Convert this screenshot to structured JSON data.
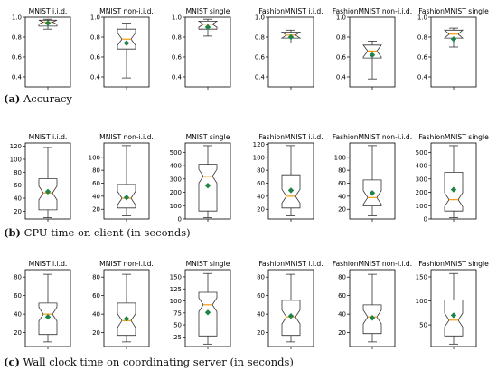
{
  "captions": [
    {
      "letter": "(a)",
      "text": "Accuracy"
    },
    {
      "letter": "(b)",
      "text": "CPU time on client (in seconds)"
    },
    {
      "letter": "(c)",
      "text": "Wall clock time on coordinating server (in seconds)"
    }
  ],
  "colors": {
    "box": "#333333",
    "median": "#f39c12",
    "mean": "#1e8449",
    "frame": "#000000"
  },
  "chart_data": [
    {
      "type": "box",
      "title": "MNIST i.i.d.",
      "ylim": [
        0.3,
        1.0
      ],
      "yticks": [
        "0.4",
        "0.6",
        "0.8",
        "1.0"
      ],
      "ytick_values": [
        0.4,
        0.6,
        0.8,
        1.0
      ],
      "box": {
        "whisker_low": 0.88,
        "q1": 0.91,
        "median": 0.95,
        "q3": 0.97,
        "whisker_high": 0.98,
        "mean": 0.94
      }
    },
    {
      "type": "box",
      "title": "MNIST non-i.i.d.",
      "ylim": [
        0.3,
        1.0
      ],
      "yticks": [
        "0.4",
        "0.6",
        "0.8",
        "1.0"
      ],
      "ytick_values": [
        0.4,
        0.6,
        0.8,
        1.0
      ],
      "box": {
        "whisker_low": 0.39,
        "q1": 0.68,
        "median": 0.78,
        "q3": 0.88,
        "whisker_high": 0.94,
        "mean": 0.74
      }
    },
    {
      "type": "box",
      "title": "MNIST single",
      "ylim": [
        0.3,
        1.0
      ],
      "yticks": [
        "0.4",
        "0.6",
        "0.8",
        "1.0"
      ],
      "ytick_values": [
        0.4,
        0.6,
        0.8,
        1.0
      ],
      "box": {
        "whisker_low": 0.81,
        "q1": 0.88,
        "median": 0.93,
        "q3": 0.96,
        "whisker_high": 0.98,
        "mean": 0.9
      }
    },
    {
      "type": "box",
      "title": "FashionMNIST i.i.d.",
      "ylim": [
        0.3,
        1.0
      ],
      "yticks": [
        "0.4",
        "0.6",
        "0.8",
        "1.0"
      ],
      "ytick_values": [
        0.4,
        0.6,
        0.8,
        1.0
      ],
      "box": {
        "whisker_low": 0.74,
        "q1": 0.79,
        "median": 0.82,
        "q3": 0.85,
        "whisker_high": 0.87,
        "mean": 0.8
      }
    },
    {
      "type": "box",
      "title": "FashionMNIST non-i.i.d.",
      "ylim": [
        0.3,
        1.0
      ],
      "yticks": [
        "0.4",
        "0.6",
        "0.8",
        "1.0"
      ],
      "ytick_values": [
        0.4,
        0.6,
        0.8,
        1.0
      ],
      "box": {
        "whisker_low": 0.38,
        "q1": 0.59,
        "median": 0.66,
        "q3": 0.72,
        "whisker_high": 0.76,
        "mean": 0.62
      }
    },
    {
      "type": "box",
      "title": "FashionMNIST single",
      "ylim": [
        0.3,
        1.0
      ],
      "yticks": [
        "0.4",
        "0.6",
        "0.8",
        "1.0"
      ],
      "ytick_values": [
        0.4,
        0.6,
        0.8,
        1.0
      ],
      "box": {
        "whisker_low": 0.7,
        "q1": 0.79,
        "median": 0.83,
        "q3": 0.87,
        "whisker_high": 0.89,
        "mean": 0.78
      }
    },
    {
      "type": "box",
      "title": "MNIST i.i.d.",
      "ylim": [
        8,
        125
      ],
      "yticks": [
        "20",
        "40",
        "60",
        "80",
        "100",
        "120"
      ],
      "ytick_values": [
        20,
        40,
        60,
        80,
        100,
        120
      ],
      "box": {
        "whisker_low": 10,
        "q1": 22,
        "median": 48,
        "q3": 70,
        "whisker_high": 118,
        "mean": 50
      }
    },
    {
      "type": "box",
      "title": "MNIST non-i.i.d.",
      "ylim": [
        5,
        122
      ],
      "yticks": [
        "20",
        "40",
        "60",
        "80",
        "100"
      ],
      "ytick_values": [
        20,
        40,
        60,
        80,
        100
      ],
      "box": {
        "whisker_low": 10,
        "q1": 22,
        "median": 37,
        "q3": 58,
        "whisker_high": 118,
        "mean": 38
      }
    },
    {
      "type": "box",
      "title": "MNIST single",
      "ylim": [
        0,
        570
      ],
      "yticks": [
        "0",
        "100",
        "200",
        "300",
        "400",
        "500"
      ],
      "ytick_values": [
        0,
        100,
        200,
        300,
        400,
        500
      ],
      "box": {
        "whisker_low": 10,
        "q1": 60,
        "median": 320,
        "q3": 410,
        "whisker_high": 550,
        "mean": 250
      }
    },
    {
      "type": "box",
      "title": "FashionMNIST i.i.d.",
      "ylim": [
        5,
        122
      ],
      "yticks": [
        "20",
        "40",
        "60",
        "80",
        "100",
        "120"
      ],
      "ytick_values": [
        20,
        40,
        60,
        80,
        100,
        120
      ],
      "box": {
        "whisker_low": 10,
        "q1": 22,
        "median": 40,
        "q3": 73,
        "whisker_high": 118,
        "mean": 49
      }
    },
    {
      "type": "box",
      "title": "FashionMNIST non-i.i.d.",
      "ylim": [
        5,
        122
      ],
      "yticks": [
        "20",
        "40",
        "60",
        "80",
        "100"
      ],
      "ytick_values": [
        20,
        40,
        60,
        80,
        100
      ],
      "box": {
        "whisker_low": 10,
        "q1": 25,
        "median": 38,
        "q3": 65,
        "whisker_high": 118,
        "mean": 45
      }
    },
    {
      "type": "box",
      "title": "FashionMNIST single",
      "ylim": [
        0,
        570
      ],
      "yticks": [
        "0",
        "100",
        "200",
        "300",
        "400",
        "500"
      ],
      "ytick_values": [
        0,
        100,
        200,
        300,
        400,
        500
      ],
      "box": {
        "whisker_low": 10,
        "q1": 60,
        "median": 145,
        "q3": 350,
        "whisker_high": 550,
        "mean": 220
      }
    },
    {
      "type": "box",
      "title": "MNIST i.i.d.",
      "ylim": [
        5,
        88
      ],
      "yticks": [
        "20",
        "40",
        "60",
        "80"
      ],
      "ytick_values": [
        20,
        40,
        60,
        80
      ],
      "box": {
        "whisker_low": 10,
        "q1": 18,
        "median": 40,
        "q3": 52,
        "whisker_high": 83,
        "mean": 37
      }
    },
    {
      "type": "box",
      "title": "MNIST non-i.i.d.",
      "ylim": [
        5,
        88
      ],
      "yticks": [
        "20",
        "40",
        "60",
        "80"
      ],
      "ytick_values": [
        20,
        40,
        60,
        80
      ],
      "box": {
        "whisker_low": 10,
        "q1": 17,
        "median": 33,
        "q3": 52,
        "whisker_high": 83,
        "mean": 35
      }
    },
    {
      "type": "box",
      "title": "MNIST single",
      "ylim": [
        5,
        165
      ],
      "yticks": [
        "25",
        "50",
        "75",
        "100",
        "125",
        "150"
      ],
      "ytick_values": [
        25,
        50,
        75,
        100,
        125,
        150
      ],
      "box": {
        "whisker_low": 10,
        "q1": 27,
        "median": 92,
        "q3": 118,
        "whisker_high": 157,
        "mean": 76
      }
    },
    {
      "type": "box",
      "title": "FashionMNIST i.i.d.",
      "ylim": [
        5,
        88
      ],
      "yticks": [
        "20",
        "40",
        "60",
        "80"
      ],
      "ytick_values": [
        20,
        40,
        60,
        80
      ],
      "box": {
        "whisker_low": 10,
        "q1": 17,
        "median": 37,
        "q3": 55,
        "whisker_high": 83,
        "mean": 38
      }
    },
    {
      "type": "box",
      "title": "FashionMNIST non-i.i.d.",
      "ylim": [
        5,
        88
      ],
      "yticks": [
        "20",
        "40",
        "60",
        "80"
      ],
      "ytick_values": [
        20,
        40,
        60,
        80
      ],
      "box": {
        "whisker_low": 10,
        "q1": 19,
        "median": 37,
        "q3": 50,
        "whisker_high": 83,
        "mean": 36
      }
    },
    {
      "type": "box",
      "title": "FashionMNIST single",
      "ylim": [
        5,
        165
      ],
      "yticks": [
        "50",
        "100",
        "150"
      ],
      "ytick_values": [
        50,
        100,
        150
      ],
      "box": {
        "whisker_low": 10,
        "q1": 27,
        "median": 60,
        "q3": 102,
        "whisker_high": 157,
        "mean": 70
      }
    }
  ]
}
